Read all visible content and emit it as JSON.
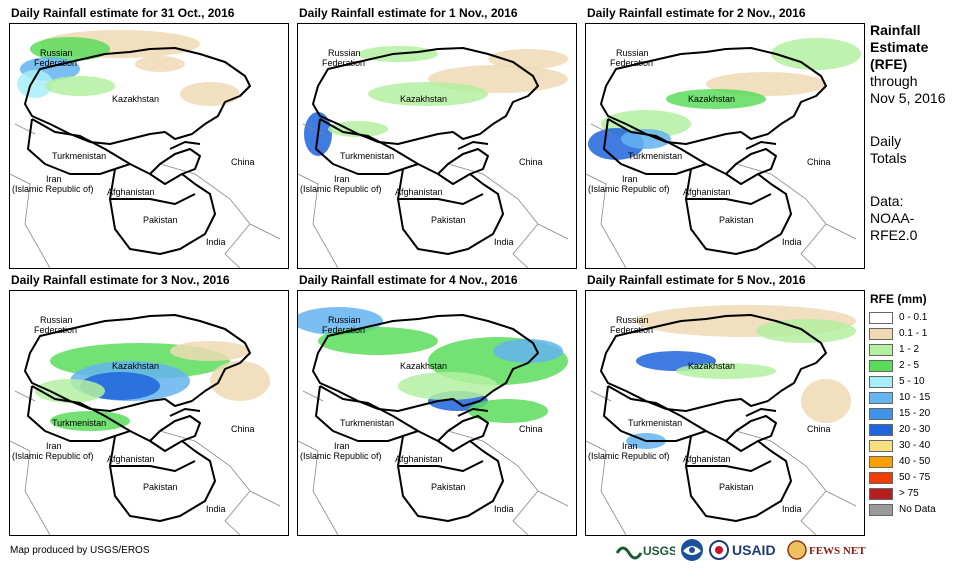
{
  "panels": [
    {
      "title": "Daily Rainfall estimate for 31 Oct., 2016"
    },
    {
      "title": "Daily Rainfall estimate for 1 Nov., 2016"
    },
    {
      "title": "Daily Rainfall estimate for 2 Nov., 2016"
    },
    {
      "title": "Daily Rainfall estimate for 3 Nov., 2016"
    },
    {
      "title": "Daily Rainfall estimate for 4 Nov., 2016"
    },
    {
      "title": "Daily Rainfall estimate for 5 Nov., 2016"
    }
  ],
  "map_labels": {
    "russia_1": "Russian",
    "russia_2": "Federation",
    "kazakhstan": "Kazakhstan",
    "turkmenistan": "Turkmenistan",
    "iran_1": "Iran",
    "iran_2": "(Islamic Republic of)",
    "afghanistan": "Afghanistan",
    "pakistan": "Pakistan",
    "china": "China",
    "india": "India"
  },
  "side": {
    "line1": "Rainfall",
    "line2": "Estimate",
    "line3": "(RFE)",
    "line4": "through",
    "line5": "Nov 5, 2016",
    "totals1": "Daily",
    "totals2": "Totals",
    "data1": "Data:",
    "data2": "NOAA-",
    "data3": "RFE2.0"
  },
  "legend": {
    "title": "RFE (mm)",
    "items": [
      {
        "label": "0 - 0.1",
        "color": "#ffffff"
      },
      {
        "label": "0.1 - 1",
        "color": "#efd9b4"
      },
      {
        "label": "1 - 2",
        "color": "#b4f0a0"
      },
      {
        "label": "2 - 5",
        "color": "#5adc5a"
      },
      {
        "label": "5 - 10",
        "color": "#a8eef8"
      },
      {
        "label": "10 - 15",
        "color": "#64b4f0"
      },
      {
        "label": "15 - 20",
        "color": "#4094e8"
      },
      {
        "label": "20 - 30",
        "color": "#1e64dc"
      },
      {
        "label": "30 - 40",
        "color": "#f8e080"
      },
      {
        "label": "40 - 50",
        "color": "#f8a000"
      },
      {
        "label": "50 - 75",
        "color": "#f03c00"
      },
      {
        "label": "> 75",
        "color": "#b41e1e"
      },
      {
        "label": "No Data",
        "color": "#9a9a9a"
      }
    ]
  },
  "credit": "Map produced by USGS/EROS",
  "logos": {
    "usgs": "USGS",
    "noaa": "NOAA",
    "usaid": "USAID",
    "fewsnet": "FEWS NET"
  }
}
